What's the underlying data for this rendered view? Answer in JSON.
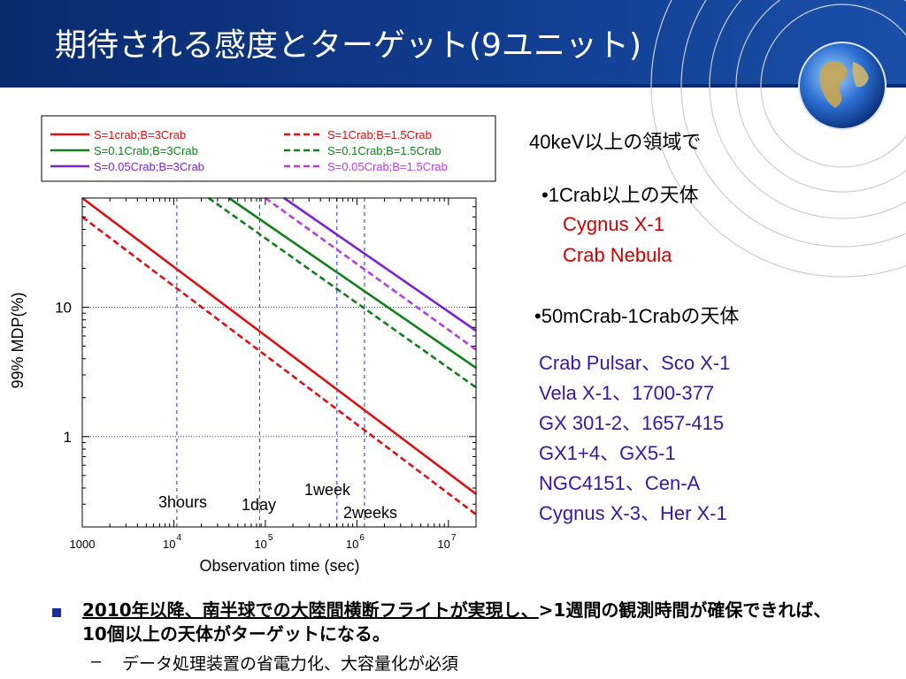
{
  "slide": {
    "title": "期待される感度とターゲット(9ユニット)",
    "range_heading": "40keV以上の領域で",
    "bright_heading": "•1Crab以上の天体",
    "bright_targets": [
      "Cygnus X-1",
      "Crab Nebula"
    ],
    "mid_heading": "•50mCrab-1Crabの天体",
    "mid_targets": [
      "Crab Pulsar、Sco X-1",
      "Vela X-1、1700-377",
      "GX 301-2、1657-415",
      "GX1+4、GX5-1",
      "NGC4151、Cen-A",
      "Cygnus X-3、Her X-1"
    ],
    "bullet_lead": "2010年以降、南半球での大陸間横断フライトが実現し、",
    "bullet_rest": ">1週間の観測時間が確保できれば、10個以上の天体がターゲットになる。",
    "sub_dash": "–",
    "sub_bullet": "データ処理装置の省電力化、大容量化が必須"
  },
  "chart_data": {
    "type": "line",
    "xlabel": "Observation time (sec)",
    "ylabel": "99% MDP(%)",
    "x_scale": "log",
    "y_scale": "log",
    "xlim": [
      1000,
      20000000
    ],
    "ylim": [
      0.2,
      70
    ],
    "x_ticks": [
      1000,
      10000,
      100000,
      1000000,
      10000000
    ],
    "x_tick_labels": [
      {
        "base": "1000",
        "exp": ""
      },
      {
        "base": "10",
        "exp": "4"
      },
      {
        "base": "10",
        "exp": "5"
      },
      {
        "base": "10",
        "exp": "6"
      },
      {
        "base": "10",
        "exp": "7"
      }
    ],
    "y_ticks": [
      1,
      10
    ],
    "y_tick_labels": [
      "1",
      "10"
    ],
    "grid": true,
    "legend_position": "top",
    "markers": [
      {
        "label": "3hours",
        "x": 10800
      },
      {
        "label": "1day",
        "x": 86400
      },
      {
        "label": "1week",
        "x": 604800
      },
      {
        "label": "2weeks",
        "x": 1209600
      }
    ],
    "series": [
      {
        "name": "S=1crab;B=3Crab",
        "color": "#dd1111",
        "dash": "solid",
        "x": [
          1000,
          20000000
        ],
        "y": [
          70,
          0.36
        ]
      },
      {
        "name": "S=1Crab;B=1.5Crab",
        "color": "#dd1111",
        "dash": "dashed",
        "x": [
          1000,
          20000000
        ],
        "y": [
          50,
          0.25
        ]
      },
      {
        "name": "S=0.1Crab;B=3Crab",
        "color": "#11801a",
        "dash": "solid",
        "x": [
          40000,
          20000000
        ],
        "y": [
          70,
          3.4
        ]
      },
      {
        "name": "S=0.1Crab;B=1.5Crab",
        "color": "#11801a",
        "dash": "dashed",
        "x": [
          24000,
          20000000
        ],
        "y": [
          70,
          2.4
        ]
      },
      {
        "name": "S=0.05Crab;B=3Crab",
        "color": "#7a22d6",
        "dash": "solid",
        "x": [
          160000,
          20000000
        ],
        "y": [
          70,
          6.6
        ]
      },
      {
        "name": "S=0.05Crab;B=1.5Crab",
        "color": "#b63ee0",
        "dash": "dashed",
        "x": [
          100000,
          20000000
        ],
        "y": [
          70,
          4.7
        ]
      }
    ]
  }
}
